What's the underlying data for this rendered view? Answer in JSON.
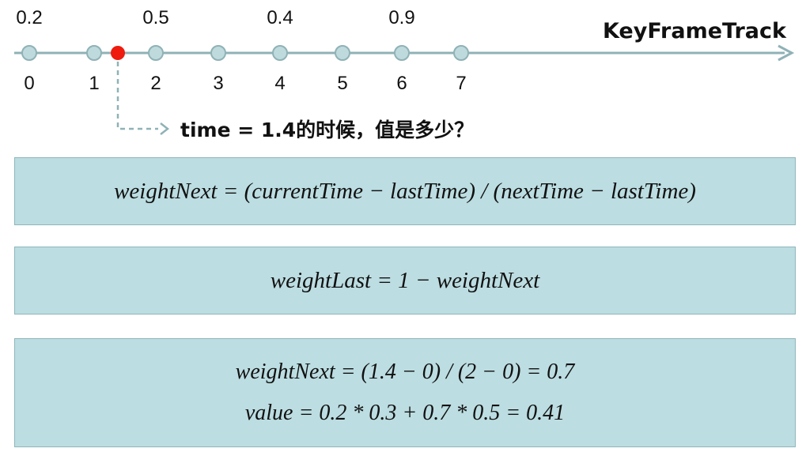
{
  "track": {
    "title": "KeyFrameTrack",
    "keyframes": [
      {
        "index": "0",
        "value": "0.2"
      },
      {
        "index": "1",
        "value": ""
      },
      {
        "index": "2",
        "value": "0.5"
      },
      {
        "index": "3",
        "value": ""
      },
      {
        "index": "4",
        "value": "0.4"
      },
      {
        "index": "5",
        "value": ""
      },
      {
        "index": "6",
        "value": "0.9"
      },
      {
        "index": "7",
        "value": ""
      }
    ],
    "marker_time": 1.4,
    "colors": {
      "line": "#8fb2b6",
      "node_fill": "#bfdadd",
      "node_stroke": "#8fb2b6",
      "marker": "#ee1b0e",
      "arrow": "#8fb2b6"
    }
  },
  "question": "time = 1.4的时候，值是多少？",
  "formulas": {
    "weight_next": "weightNext = (currentTime − lastTime) / (nextTime − lastTime)",
    "weight_last": "weightLast = 1 − weightNext",
    "calc_weight": "weightNext = (1.4 − 0) / (2 − 0) = 0.7",
    "calc_value": "value = 0.2 * 0.3 + 0.7 * 0.5 = 0.41"
  },
  "box_color": "#bcdde1"
}
